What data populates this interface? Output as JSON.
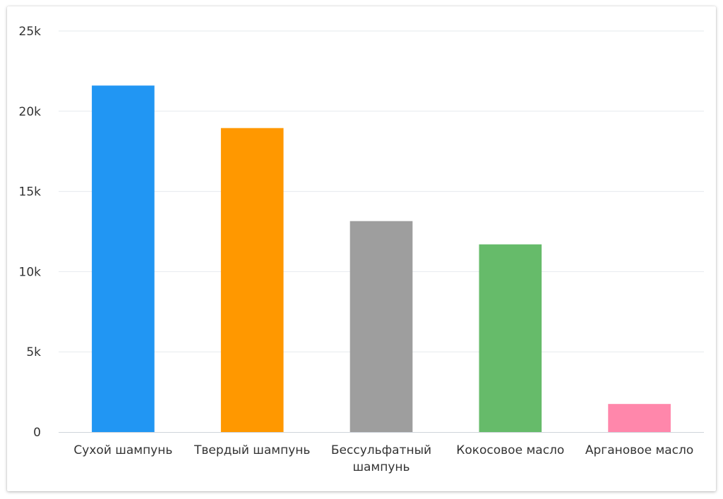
{
  "chart_data": {
    "type": "bar",
    "title": "",
    "xlabel": "",
    "ylabel": "",
    "categories": [
      [
        "Сухой шампунь"
      ],
      [
        "Твердый шампунь"
      ],
      [
        "Бессульфатный",
        "шампунь"
      ],
      [
        "Кокосовое масло"
      ],
      [
        "Аргановое масло"
      ]
    ],
    "values": [
      21600,
      18950,
      13150,
      11700,
      1750
    ],
    "colors": [
      "#2196f3",
      "#ff9800",
      "#9e9e9e",
      "#66bb6a",
      "#ff87ab"
    ],
    "ylim": [
      0,
      25000
    ],
    "yticks": [
      0,
      5000,
      10000,
      15000,
      20000,
      25000
    ],
    "ytick_labels": [
      "0",
      "5k",
      "10k",
      "15k",
      "20k",
      "25k"
    ],
    "grid": true,
    "legend": "none"
  }
}
